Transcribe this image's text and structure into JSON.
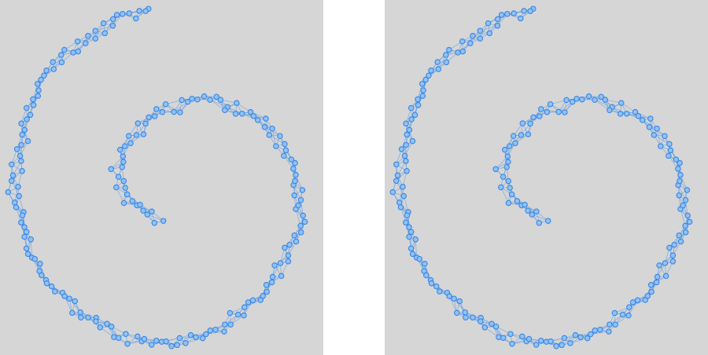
{
  "colors": {
    "panel_background": "#d6d6d6",
    "page_background": "#ffffff",
    "node_fill": "#8ec2f7",
    "node_stroke": "#3b84e0",
    "edge_stroke": "#6ba3e3"
  },
  "panels": [
    {
      "id": "left",
      "graph": "spiral-node-link-graph"
    },
    {
      "id": "right",
      "graph": "spiral-node-link-graph"
    }
  ]
}
